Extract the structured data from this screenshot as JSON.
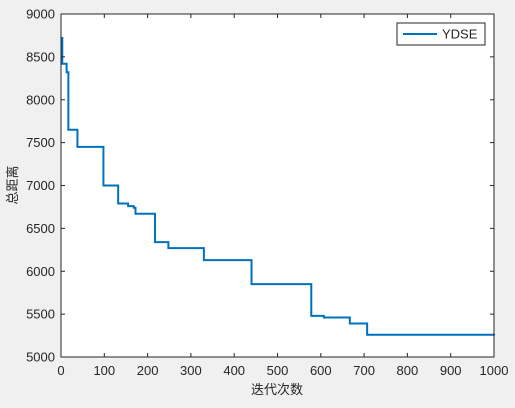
{
  "chart_data": {
    "type": "line",
    "xlabel": "迭代次数",
    "ylabel": "总距离",
    "xlim": [
      0,
      1000
    ],
    "ylim": [
      5000,
      9000
    ],
    "xticks": [
      0,
      100,
      200,
      300,
      400,
      500,
      600,
      700,
      800,
      900,
      1000
    ],
    "yticks": [
      5000,
      5500,
      6000,
      6500,
      7000,
      7500,
      8000,
      8500,
      9000
    ],
    "grid": false,
    "legend_position": "top-right",
    "series": [
      {
        "name": "YDSE",
        "color": "#0072bd",
        "step": true,
        "x": [
          0,
          3,
          13,
          17,
          38,
          98,
          132,
          155,
          168,
          172,
          217,
          248,
          330,
          440,
          578,
          607,
          667,
          707,
          1000
        ],
        "y": [
          8720,
          8420,
          8320,
          7650,
          7450,
          7000,
          6790,
          6760,
          6740,
          6670,
          6340,
          6270,
          6130,
          5850,
          5480,
          5460,
          5390,
          5260,
          5250
        ]
      }
    ]
  }
}
